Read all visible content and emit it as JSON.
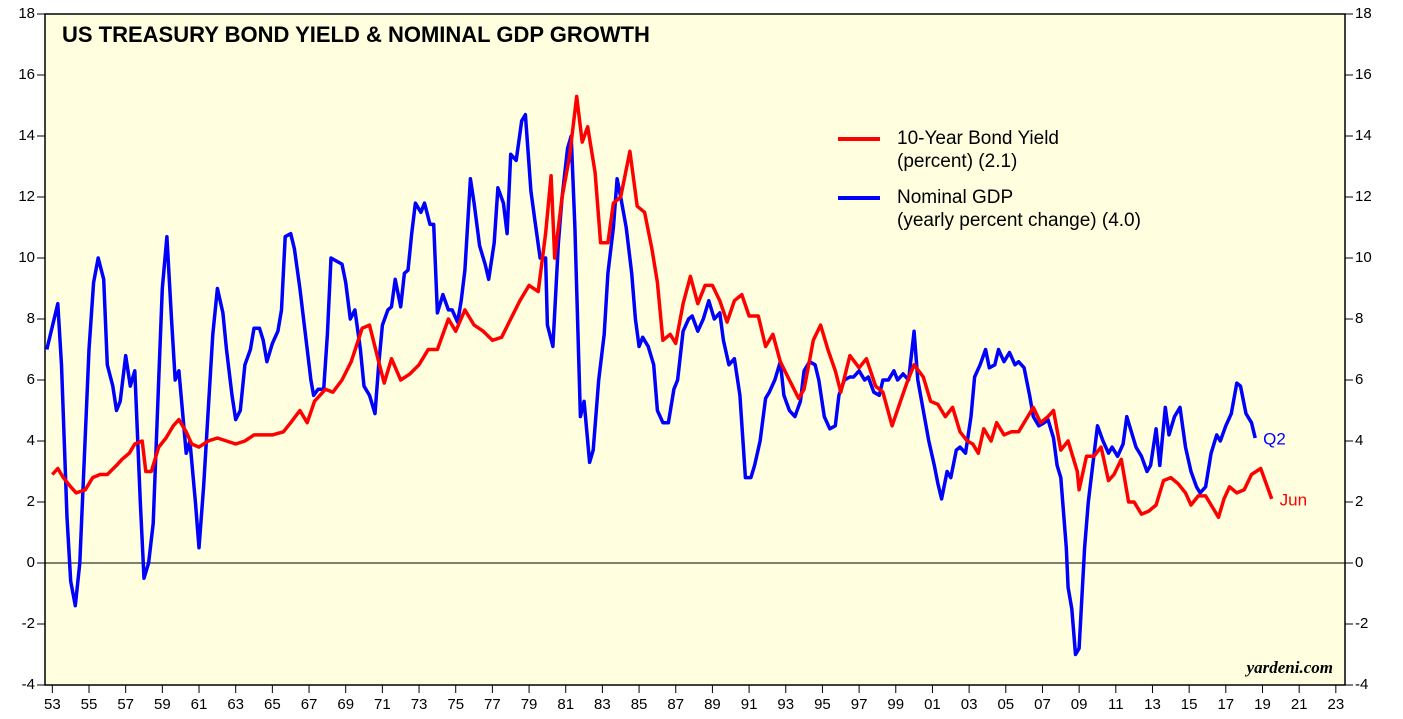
{
  "chart_data": {
    "type": "line",
    "title": "US TREASURY BOND YIELD & NOMINAL GDP GROWTH",
    "source": "yardeni.com",
    "background": "#ffffe0",
    "xlim": [
      1952.6,
      2023.5
    ],
    "xticks": [
      {
        "value": 1953,
        "label": "53"
      },
      {
        "value": 1955,
        "label": "55"
      },
      {
        "value": 1957,
        "label": "57"
      },
      {
        "value": 1959,
        "label": "59"
      },
      {
        "value": 1961,
        "label": "61"
      },
      {
        "value": 1963,
        "label": "63"
      },
      {
        "value": 1965,
        "label": "65"
      },
      {
        "value": 1967,
        "label": "67"
      },
      {
        "value": 1969,
        "label": "69"
      },
      {
        "value": 1971,
        "label": "71"
      },
      {
        "value": 1973,
        "label": "73"
      },
      {
        "value": 1975,
        "label": "75"
      },
      {
        "value": 1977,
        "label": "77"
      },
      {
        "value": 1979,
        "label": "79"
      },
      {
        "value": 1981,
        "label": "81"
      },
      {
        "value": 1983,
        "label": "83"
      },
      {
        "value": 1985,
        "label": "85"
      },
      {
        "value": 1987,
        "label": "87"
      },
      {
        "value": 1989,
        "label": "89"
      },
      {
        "value": 1991,
        "label": "91"
      },
      {
        "value": 1993,
        "label": "93"
      },
      {
        "value": 1995,
        "label": "95"
      },
      {
        "value": 1997,
        "label": "97"
      },
      {
        "value": 1999,
        "label": "99"
      },
      {
        "value": 2001,
        "label": "01"
      },
      {
        "value": 2003,
        "label": "03"
      },
      {
        "value": 2005,
        "label": "05"
      },
      {
        "value": 2007,
        "label": "07"
      },
      {
        "value": 2009,
        "label": "09"
      },
      {
        "value": 2011,
        "label": "11"
      },
      {
        "value": 2013,
        "label": "13"
      },
      {
        "value": 2015,
        "label": "15"
      },
      {
        "value": 2017,
        "label": "17"
      },
      {
        "value": 2019,
        "label": "19"
      },
      {
        "value": 2021,
        "label": "21"
      },
      {
        "value": 2023,
        "label": "23"
      }
    ],
    "ylim": [
      -4,
      18
    ],
    "yticks": [
      -4,
      -2,
      0,
      2,
      4,
      6,
      8,
      10,
      12,
      14,
      16,
      18
    ],
    "y2lim": [
      -4,
      18
    ],
    "y2ticks": [
      -4,
      -2,
      0,
      2,
      4,
      6,
      8,
      10,
      12,
      14,
      16,
      18
    ],
    "zero_line": true,
    "series": [
      {
        "name": "10-Year Bond Yield",
        "legend_note": "(percent) (2.1)",
        "end_label": "Jun",
        "color": "#ff0000",
        "x": [
          1953.0,
          1953.3,
          1953.6,
          1954.0,
          1954.3,
          1954.8,
          1955.2,
          1955.6,
          1956.0,
          1956.5,
          1956.8,
          1957.2,
          1957.5,
          1957.9,
          1958.1,
          1958.4,
          1958.8,
          1959.2,
          1959.6,
          1959.9,
          1960.3,
          1960.6,
          1961.0,
          1961.5,
          1962.0,
          1962.5,
          1963.0,
          1963.5,
          1964.0,
          1965.0,
          1965.6,
          1966.0,
          1966.5,
          1966.9,
          1967.3,
          1967.9,
          1968.3,
          1968.8,
          1969.3,
          1969.9,
          1970.3,
          1970.8,
          1971.1,
          1971.5,
          1972.0,
          1972.5,
          1973.0,
          1973.5,
          1974.0,
          1974.6,
          1975.0,
          1975.5,
          1976.0,
          1976.5,
          1977.0,
          1977.5,
          1978.0,
          1978.5,
          1979.0,
          1979.5,
          1979.9,
          1980.2,
          1980.4,
          1980.8,
          1981.2,
          1981.6,
          1981.9,
          1982.2,
          1982.6,
          1982.9,
          1983.3,
          1983.6,
          1984.0,
          1984.5,
          1984.9,
          1985.3,
          1985.7,
          1986.0,
          1986.3,
          1986.7,
          1987.0,
          1987.4,
          1987.8,
          1988.2,
          1988.6,
          1989.0,
          1989.4,
          1989.8,
          1990.2,
          1990.6,
          1991.0,
          1991.5,
          1991.9,
          1992.3,
          1992.7,
          1993.2,
          1993.7,
          1994.0,
          1994.5,
          1994.9,
          1995.3,
          1995.7,
          1996.0,
          1996.5,
          1997.0,
          1997.4,
          1997.9,
          1998.3,
          1998.8,
          1999.2,
          1999.6,
          2000.0,
          2000.5,
          2000.9,
          2001.3,
          2001.7,
          2002.1,
          2002.5,
          2002.9,
          2003.2,
          2003.5,
          2003.8,
          2004.2,
          2004.5,
          2004.9,
          2005.3,
          2005.7,
          2006.0,
          2006.5,
          2006.9,
          2007.3,
          2007.6,
          2008.0,
          2008.4,
          2008.9,
          2009.0,
          2009.4,
          2009.8,
          2010.2,
          2010.6,
          2010.9,
          2011.3,
          2011.7,
          2012.0,
          2012.4,
          2012.8,
          2013.2,
          2013.6,
          2014.0,
          2014.4,
          2014.8,
          2015.1,
          2015.5,
          2015.9,
          2016.3,
          2016.6,
          2016.9,
          2017.2,
          2017.6,
          2018.0,
          2018.4,
          2018.9,
          2019.2,
          2019.5
        ],
        "values": [
          2.9,
          3.1,
          2.8,
          2.5,
          2.3,
          2.4,
          2.8,
          2.9,
          2.9,
          3.2,
          3.4,
          3.6,
          3.9,
          4.0,
          3.0,
          3.0,
          3.8,
          4.1,
          4.5,
          4.7,
          4.3,
          3.9,
          3.8,
          4.0,
          4.1,
          4.0,
          3.9,
          4.0,
          4.2,
          4.2,
          4.3,
          4.6,
          5.0,
          4.6,
          5.3,
          5.7,
          5.6,
          6.0,
          6.6,
          7.7,
          7.8,
          6.6,
          5.9,
          6.7,
          6.0,
          6.2,
          6.5,
          7.0,
          7.0,
          8.0,
          7.6,
          8.3,
          7.8,
          7.6,
          7.3,
          7.4,
          8.0,
          8.6,
          9.1,
          8.9,
          10.8,
          12.7,
          10.0,
          12.0,
          13.3,
          15.3,
          13.8,
          14.3,
          12.8,
          10.5,
          10.5,
          11.8,
          12.0,
          13.5,
          11.7,
          11.5,
          10.3,
          9.2,
          7.3,
          7.5,
          7.2,
          8.5,
          9.4,
          8.5,
          9.1,
          9.1,
          8.6,
          7.9,
          8.6,
          8.8,
          8.1,
          8.1,
          7.1,
          7.5,
          6.6,
          6.0,
          5.4,
          5.7,
          7.3,
          7.8,
          7.0,
          6.3,
          5.6,
          6.8,
          6.4,
          6.7,
          5.8,
          5.6,
          4.5,
          5.2,
          5.9,
          6.5,
          6.1,
          5.3,
          5.2,
          4.8,
          5.1,
          4.3,
          4.0,
          3.9,
          3.6,
          4.4,
          4.0,
          4.6,
          4.2,
          4.3,
          4.3,
          4.6,
          5.1,
          4.6,
          4.8,
          5.0,
          3.7,
          4.0,
          3.0,
          2.4,
          3.5,
          3.5,
          3.8,
          2.7,
          2.9,
          3.4,
          2.0,
          2.0,
          1.6,
          1.7,
          1.9,
          2.7,
          2.8,
          2.6,
          2.3,
          1.9,
          2.2,
          2.2,
          1.8,
          1.5,
          2.1,
          2.5,
          2.3,
          2.4,
          2.9,
          3.1,
          2.6,
          2.1
        ]
      },
      {
        "name": "Nominal GDP",
        "legend_note": "(yearly percent change) (4.0)",
        "end_label": "Q2",
        "color": "#0000ff",
        "x": [
          1952.7,
          1953.3,
          1953.5,
          1953.8,
          1954.0,
          1954.25,
          1954.5,
          1955.0,
          1955.25,
          1955.5,
          1955.8,
          1956.0,
          1956.3,
          1956.5,
          1956.7,
          1957.0,
          1957.25,
          1957.5,
          1957.8,
          1958.0,
          1958.25,
          1958.5,
          1958.8,
          1959.0,
          1959.25,
          1959.5,
          1959.7,
          1959.9,
          1960.3,
          1960.5,
          1960.8,
          1961.0,
          1961.25,
          1961.5,
          1961.75,
          1962.0,
          1962.3,
          1962.5,
          1962.8,
          1963.0,
          1963.25,
          1963.5,
          1963.8,
          1964.0,
          1964.3,
          1964.5,
          1964.7,
          1965.0,
          1965.3,
          1965.5,
          1965.7,
          1966.0,
          1966.2,
          1966.5,
          1966.8,
          1967.1,
          1967.25,
          1967.5,
          1967.8,
          1968.0,
          1968.2,
          1968.5,
          1968.8,
          1969.0,
          1969.25,
          1969.5,
          1969.8,
          1970.0,
          1970.3,
          1970.6,
          1970.8,
          1971.0,
          1971.3,
          1971.5,
          1971.7,
          1972.0,
          1972.2,
          1972.4,
          1972.6,
          1972.8,
          1973.1,
          1973.3,
          1973.6,
          1973.8,
          1974.0,
          1974.3,
          1974.6,
          1974.8,
          1975.1,
          1975.3,
          1975.5,
          1975.8,
          1976.0,
          1976.3,
          1976.6,
          1976.8,
          1977.1,
          1977.3,
          1977.6,
          1977.8,
          1978.0,
          1978.3,
          1978.6,
          1978.8,
          1979.1,
          1979.3,
          1979.6,
          1979.9,
          1980.0,
          1980.3,
          1980.6,
          1980.8,
          1981.1,
          1981.3,
          1981.5,
          1981.8,
          1982.0,
          1982.3,
          1982.5,
          1982.8,
          1983.1,
          1983.3,
          1983.6,
          1983.8,
          1984.0,
          1984.3,
          1984.6,
          1984.8,
          1985.0,
          1985.2,
          1985.5,
          1985.8,
          1986.0,
          1986.3,
          1986.6,
          1986.9,
          1987.1,
          1987.4,
          1987.7,
          1987.9,
          1988.2,
          1988.5,
          1988.8,
          1989.1,
          1989.4,
          1989.6,
          1989.9,
          1990.2,
          1990.5,
          1990.8,
          1991.1,
          1991.3,
          1991.6,
          1991.9,
          1992.1,
          1992.4,
          1992.7,
          1992.9,
          1993.2,
          1993.5,
          1993.8,
          1994.0,
          1994.3,
          1994.6,
          1994.8,
          1995.1,
          1995.4,
          1995.7,
          1995.9,
          1996.2,
          1996.5,
          1996.7,
          1997.0,
          1997.3,
          1997.5,
          1997.8,
          1998.1,
          1998.3,
          1998.6,
          1998.9,
          1999.1,
          1999.4,
          1999.7,
          2000.0,
          2000.2,
          2000.5,
          2000.8,
          2001.1,
          2001.3,
          2001.5,
          2001.8,
          2002.0,
          2002.3,
          2002.5,
          2002.8,
          2003.1,
          2003.3,
          2003.6,
          2003.9,
          2004.1,
          2004.4,
          2004.6,
          2004.9,
          2005.2,
          2005.5,
          2005.7,
          2006.0,
          2006.3,
          2006.5,
          2006.8,
          2007.1,
          2007.3,
          2007.6,
          2007.8,
          2008.0,
          2008.3,
          2008.4,
          2008.6,
          2008.8,
          2009.0,
          2009.3,
          2009.5,
          2009.8,
          2010.0,
          2010.3,
          2010.6,
          2010.8,
          2011.1,
          2011.4,
          2011.6,
          2011.9,
          2012.1,
          2012.4,
          2012.7,
          2012.9,
          2013.2,
          2013.4,
          2013.7,
          2013.9,
          2014.2,
          2014.5,
          2014.8,
          2015.1,
          2015.4,
          2015.6,
          2015.9,
          2016.2,
          2016.5,
          2016.7,
          2017.0,
          2017.3,
          2017.6,
          2017.8,
          2018.1,
          2018.4,
          2018.6
        ],
        "values": [
          7.0,
          8.5,
          6.5,
          1.5,
          -0.6,
          -1.4,
          0,
          7.0,
          9.2,
          10.0,
          9.3,
          6.5,
          5.8,
          5.0,
          5.3,
          6.8,
          5.8,
          6.3,
          2.0,
          -0.5,
          0,
          1.3,
          6,
          9,
          10.7,
          8,
          6,
          6.3,
          3.6,
          4.0,
          2.0,
          0.5,
          2.5,
          5,
          7.5,
          9.0,
          8.2,
          7.0,
          5.5,
          4.7,
          5.0,
          6.5,
          7.0,
          7.7,
          7.7,
          7.3,
          6.6,
          7.2,
          7.6,
          8.3,
          10.7,
          10.8,
          10.3,
          9.0,
          7.5,
          6.0,
          5.5,
          5.7,
          5.7,
          7.5,
          10.0,
          9.9,
          9.8,
          9.2,
          8.0,
          8.3,
          7.0,
          5.8,
          5.5,
          4.9,
          6.5,
          7.8,
          8.3,
          8.4,
          9.3,
          8.4,
          9.5,
          9.6,
          10.8,
          11.8,
          11.5,
          11.8,
          11.1,
          11.1,
          8.2,
          8.8,
          8.3,
          8.3,
          7.9,
          8.6,
          9.6,
          12.6,
          11.8,
          10.4,
          9.8,
          9.3,
          10.5,
          12.3,
          11.8,
          10.8,
          13.4,
          13.2,
          14.5,
          14.7,
          12.2,
          11.3,
          10.0,
          10.0,
          7.8,
          7.1,
          10.5,
          12.0,
          13.6,
          14.0,
          11.0,
          4.8,
          5.3,
          3.3,
          3.7,
          6.0,
          7.5,
          9.5,
          11.0,
          12.6,
          12.0,
          11.0,
          9.5,
          8.0,
          7.1,
          7.4,
          7.1,
          6.5,
          5.0,
          4.6,
          4.6,
          5.7,
          6.0,
          7.6,
          8.0,
          8.1,
          7.6,
          8.0,
          8.6,
          8.0,
          8.2,
          7.3,
          6.5,
          6.7,
          5.5,
          2.8,
          2.8,
          3.2,
          4.0,
          5.4,
          5.6,
          6.0,
          6.6,
          5.5,
          5.0,
          4.8,
          5.3,
          6.3,
          6.6,
          6.5,
          6.0,
          4.8,
          4.4,
          4.5,
          5.5,
          6.0,
          6.1,
          6.1,
          6.3,
          6.0,
          6.1,
          5.6,
          5.5,
          6.0,
          6.0,
          6.3,
          6.0,
          6.2,
          6.0,
          7.6,
          6.0,
          5.0,
          4.0,
          3.2,
          2.6,
          2.1,
          3.0,
          2.8,
          3.7,
          3.8,
          3.6,
          4.8,
          6.1,
          6.5,
          7.0,
          6.4,
          6.5,
          7.0,
          6.6,
          6.9,
          6.5,
          6.6,
          6.4,
          5.5,
          4.8,
          4.5,
          4.6,
          4.7,
          4.1,
          3.2,
          2.8,
          0.5,
          -0.8,
          -1.5,
          -3.0,
          -2.8,
          0.5,
          2.0,
          3.5,
          4.5,
          4.0,
          3.6,
          3.8,
          3.5,
          3.9,
          4.8,
          4.2,
          3.8,
          3.5,
          3.0,
          3.2,
          4.4,
          3.2,
          5.1,
          4.2,
          4.8,
          5.1,
          3.8,
          3.0,
          2.5,
          2.3,
          2.5,
          3.6,
          4.2,
          4.0,
          4.5,
          4.9,
          5.9,
          5.8,
          4.9,
          4.6,
          4.1
        ]
      }
    ]
  }
}
